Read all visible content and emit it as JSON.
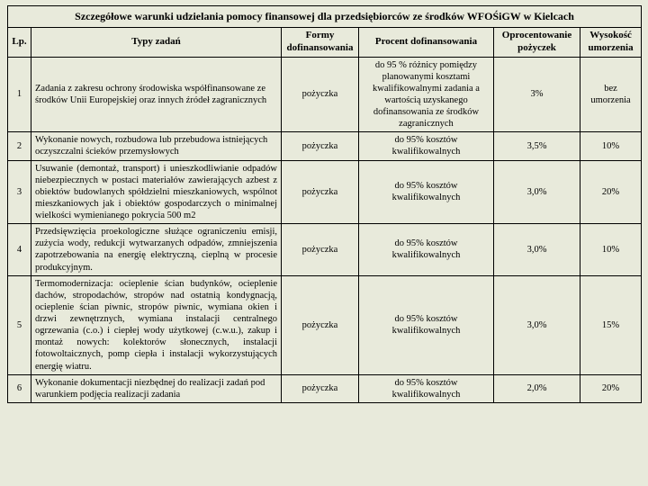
{
  "title": "Szczegółowe warunki udzielania pomocy finansowej dla przedsiębiorców ze środków WFOŚiGW w Kielcach",
  "headers": {
    "lp": "Lp.",
    "tasks": "Typy zadań",
    "forms": "Formy dofinansowania",
    "percent": "Procent dofinansowania",
    "rate": "Oprocentowanie pożyczek",
    "amount": "Wysokość umorzenia"
  },
  "rows": [
    {
      "lp": "1",
      "task": "Zadania z zakresu ochrony środowiska współfinansowane ze środków Unii Europejskiej oraz innych źródeł zagranicznych",
      "form": "pożyczka",
      "percent": "do 95 % różnicy pomiędzy planowanymi kosztami kwalifikowalnymi zadania a wartością uzyskanego dofinansowania ze środków zagranicznych",
      "rate": "3%",
      "amt": "bez umorzenia"
    },
    {
      "lp": "2",
      "task": "Wykonanie nowych, rozbudowa lub przebudowa istniejących oczyszczalni ścieków przemysłowych",
      "form": "pożyczka",
      "percent": "do 95% kosztów kwalifikowalnych",
      "rate": "3,5%",
      "amt": "10%"
    },
    {
      "lp": "3",
      "task": "Usuwanie (demontaż, transport) i unieszkodliwianie odpadów niebezpiecznych w postaci materiałów zawierających azbest z obiektów budowlanych spółdzielni mieszkaniowych, wspólnot mieszkaniowych jak i obiektów gospodarczych o minimalnej wielkości wymienianego pokrycia 500 m2",
      "form": "pożyczka",
      "percent": "do 95% kosztów kwalifikowalnych",
      "rate": "3,0%",
      "amt": "20%"
    },
    {
      "lp": "4",
      "task": "Przedsięwzięcia proekologiczne służące ograniczeniu emisji, zużycia wody, redukcji wytwarzanych odpadów, zmniejszenia zapotrzebowania na energię elektryczną, cieplną w procesie produkcyjnym.",
      "form": "pożyczka",
      "percent": "do 95% kosztów kwalifikowalnych",
      "rate": "3,0%",
      "amt": "10%"
    },
    {
      "lp": "5",
      "task": "Termomodernizacja: ocieplenie ścian budynków, ocieplenie dachów, stropodachów, stropów nad ostatnią kondygnacją, ocieplenie ścian piwnic, stropów piwnic, wymiana okien i drzwi zewnętrznych, wymiana instalacji centralnego ogrzewania (c.o.) i ciepłej wody użytkowej (c.w.u.), zakup i montaż nowych: kolektorów słonecznych, instalacji fotowoltaicznych, pomp ciepła i instalacji wykorzystujących energię wiatru.",
      "form": "pożyczka",
      "percent": "do 95% kosztów kwalifikowalnych",
      "rate": "3,0%",
      "amt": "15%"
    },
    {
      "lp": "6",
      "task": "Wykonanie dokumentacji niezbędnej do realizacji zadań pod warunkiem podjęcia realizacji zadania",
      "form": "pożyczka",
      "percent": "do 95% kosztów kwalifikowalnych",
      "rate": "2,0%",
      "amt": "20%"
    }
  ]
}
